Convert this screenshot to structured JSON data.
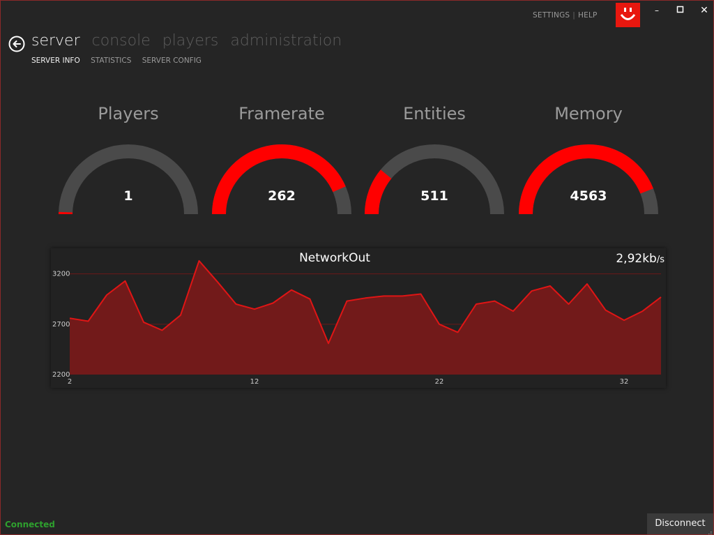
{
  "top_menu": {
    "settings": "SETTINGS",
    "help": "HELP"
  },
  "nav": {
    "tabs": [
      "server",
      "console",
      "players",
      "administration"
    ],
    "active_tab": 0,
    "subtabs": [
      "SERVER INFO",
      "STATISTICS",
      "SERVER CONFIG"
    ],
    "active_subtab": 0
  },
  "colors": {
    "accent": "#ff0000",
    "gauge_track": "#4a4a4a",
    "area_fill": "#721a1a",
    "line": "#e01515",
    "status_ok": "#2ea02e"
  },
  "gauges": [
    {
      "title": "Players",
      "value": "1",
      "fraction": 0.01
    },
    {
      "title": "Framerate",
      "value": "262",
      "fraction": 0.87
    },
    {
      "title": "Entities",
      "value": "511",
      "fraction": 0.22
    },
    {
      "title": "Memory",
      "value": "4563",
      "fraction": 0.88
    }
  ],
  "chart_data": {
    "type": "area",
    "title": "NetworkOut",
    "current_value": "2,92",
    "current_unit": "kb",
    "current_unit_suffix": "/s",
    "x": [
      2,
      3,
      4,
      5,
      6,
      7,
      8,
      9,
      10,
      11,
      12,
      13,
      14,
      15,
      16,
      17,
      18,
      19,
      20,
      21,
      22,
      23,
      24,
      25,
      26,
      27,
      28,
      29,
      30,
      31,
      32,
      33,
      34
    ],
    "values": [
      2760,
      2730,
      2990,
      3130,
      2720,
      2640,
      2790,
      3330,
      3120,
      2900,
      2850,
      2910,
      3040,
      2950,
      2510,
      2930,
      2960,
      2980,
      2980,
      3000,
      2700,
      2620,
      2900,
      2930,
      2830,
      3030,
      3080,
      2900,
      3100,
      2840,
      2740,
      2830,
      2970
    ],
    "x_ticks": [
      2,
      12,
      22,
      32
    ],
    "y_ticks": [
      2200,
      2700,
      3200
    ],
    "ylim": [
      2200,
      3350
    ],
    "grid": "horizontal"
  },
  "status": {
    "connection": "Connected"
  },
  "footer": {
    "disconnect_label": "Disconnect"
  }
}
